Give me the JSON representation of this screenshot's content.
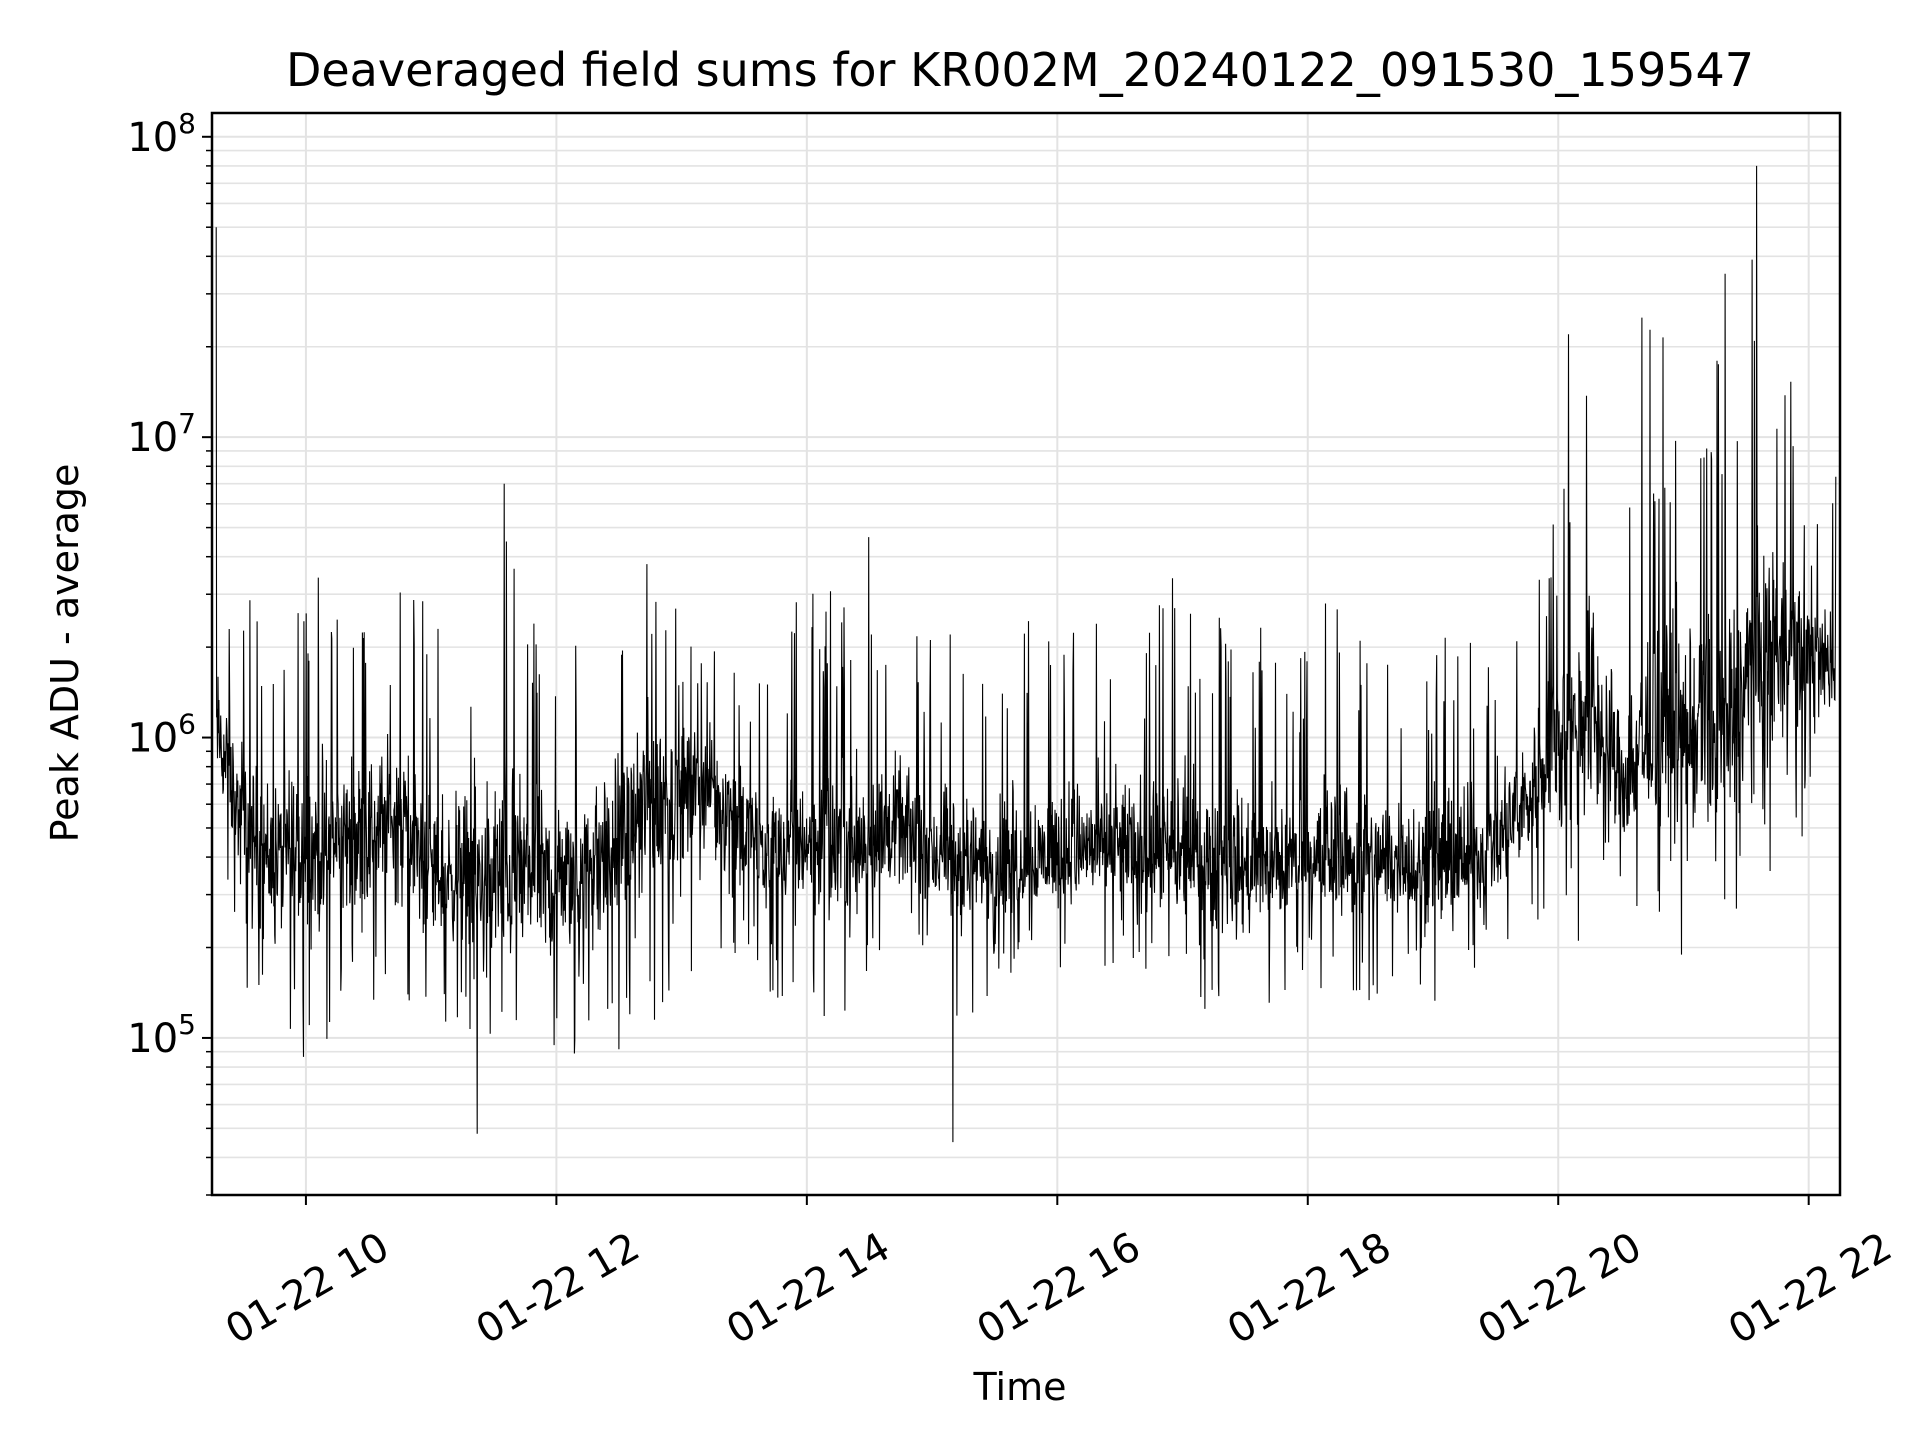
{
  "chart_data": {
    "type": "line",
    "title": "Deaveraged field sums for KR002M_20240122_091530_159547",
    "xlabel": "Time",
    "ylabel": "Peak ADU - average",
    "yscale": "log",
    "ylim": [
      30000,
      120000000
    ],
    "xlim": [
      "2024-01-22 09:15",
      "2024-01-22 22:15"
    ],
    "x_ticks": [
      "01-22 10",
      "01-22 12",
      "01-22 14",
      "01-22 16",
      "01-22 18",
      "01-22 20",
      "01-22 22"
    ],
    "y_ticks": [
      {
        "base": "10",
        "exp": "5"
      },
      {
        "base": "10",
        "exp": "6"
      },
      {
        "base": "10",
        "exp": "7"
      },
      {
        "base": "10",
        "exp": "8"
      }
    ],
    "grid": true,
    "line_color": "#000000",
    "series": [
      {
        "x": [
          "2024-01-22 09:15",
          "2024-01-22 09:30",
          "2024-01-22 09:45",
          "2024-01-22 10:00",
          "2024-01-22 10:15",
          "2024-01-22 10:30",
          "2024-01-22 10:45",
          "2024-01-22 11:00",
          "2024-01-22 11:15",
          "2024-01-22 11:30",
          "2024-01-22 11:45",
          "2024-01-22 12:00",
          "2024-01-22 12:15",
          "2024-01-22 12:30",
          "2024-01-22 12:45",
          "2024-01-22 13:00",
          "2024-01-22 13:15",
          "2024-01-22 13:30",
          "2024-01-22 13:45",
          "2024-01-22 14:00",
          "2024-01-22 14:15",
          "2024-01-22 14:30",
          "2024-01-22 14:45",
          "2024-01-22 15:00",
          "2024-01-22 15:15",
          "2024-01-22 15:30",
          "2024-01-22 15:45",
          "2024-01-22 16:00",
          "2024-01-22 16:15",
          "2024-01-22 16:30",
          "2024-01-22 16:45",
          "2024-01-22 17:00",
          "2024-01-22 17:15",
          "2024-01-22 17:30",
          "2024-01-22 17:45",
          "2024-01-22 18:00",
          "2024-01-22 18:15",
          "2024-01-22 18:30",
          "2024-01-22 18:45",
          "2024-01-22 19:00",
          "2024-01-22 19:15",
          "2024-01-22 19:30",
          "2024-01-22 19:45",
          "2024-01-22 20:00",
          "2024-01-22 20:15",
          "2024-01-22 20:30",
          "2024-01-22 20:45",
          "2024-01-22 21:00",
          "2024-01-22 21:15",
          "2024-01-22 21:30",
          "2024-01-22 21:45",
          "2024-01-22 22:00",
          "2024-01-22 22:15"
        ],
        "lower": [
          550000,
          90000,
          70000,
          80000,
          90000,
          100000,
          120000,
          100000,
          110000,
          90000,
          70000,
          80000,
          90000,
          90000,
          110000,
          130000,
          160000,
          150000,
          130000,
          160000,
          90000,
          170000,
          200000,
          180000,
          100000,
          150000,
          170000,
          170000,
          160000,
          170000,
          150000,
          130000,
          110000,
          110000,
          100000,
          150000,
          140000,
          130000,
          140000,
          120000,
          130000,
          200000,
          230000,
          190000,
          180000,
          220000,
          220000,
          180000,
          200000,
          180000,
          300000,
          450000,
          900000
        ],
        "mid": [
          1200000,
          500000,
          400000,
          400000,
          450000,
          500000,
          550000,
          350000,
          350000,
          320000,
          350000,
          330000,
          350000,
          450000,
          600000,
          700000,
          700000,
          500000,
          400000,
          450000,
          420000,
          450000,
          480000,
          400000,
          380000,
          380000,
          380000,
          400000,
          420000,
          420000,
          400000,
          380000,
          380000,
          360000,
          370000,
          380000,
          400000,
          380000,
          380000,
          370000,
          380000,
          420000,
          600000,
          1000000,
          1300000,
          700000,
          1000000,
          1000000,
          900000,
          1500000,
          2000000,
          2000000,
          1600000
        ],
        "upper": [
          5000000,
          3000000,
          2500000,
          5700000,
          2800000,
          2600000,
          3800000,
          2600000,
          2500000,
          7000000,
          3600000,
          2000000,
          2500000,
          3600000,
          5600000,
          2500000,
          2300000,
          2000000,
          2500000,
          3000000,
          3300000,
          4700000,
          2500000,
          2200000,
          2300000,
          2500000,
          3000000,
          2400000,
          2600000,
          2300000,
          2800000,
          3800000,
          2600000,
          2400000,
          2300000,
          2300000,
          3800000,
          2200000,
          2000000,
          2300000,
          2100000,
          2500000,
          4000000,
          7000000,
          22000000,
          8000000,
          25000000,
          18000000,
          20000000,
          35000000,
          40000000,
          5000000,
          8000000
        ],
        "spikes": [
          {
            "x": "2024-01-22 09:17",
            "y": 50000000
          },
          {
            "x": "2024-01-22 21:35",
            "y": 80000000
          },
          {
            "x": "2024-01-22 20:05",
            "y": 22000000
          },
          {
            "x": "2024-01-22 20:40",
            "y": 25000000
          },
          {
            "x": "2024-01-22 21:20",
            "y": 35000000
          },
          {
            "x": "2024-01-22 21:33",
            "y": 39000000
          },
          {
            "x": "2024-01-22 11:35",
            "y": 7000000
          },
          {
            "x": "2024-01-22 15:10",
            "y": 45000
          },
          {
            "x": "2024-01-22 11:22",
            "y": 48000
          }
        ]
      }
    ]
  }
}
